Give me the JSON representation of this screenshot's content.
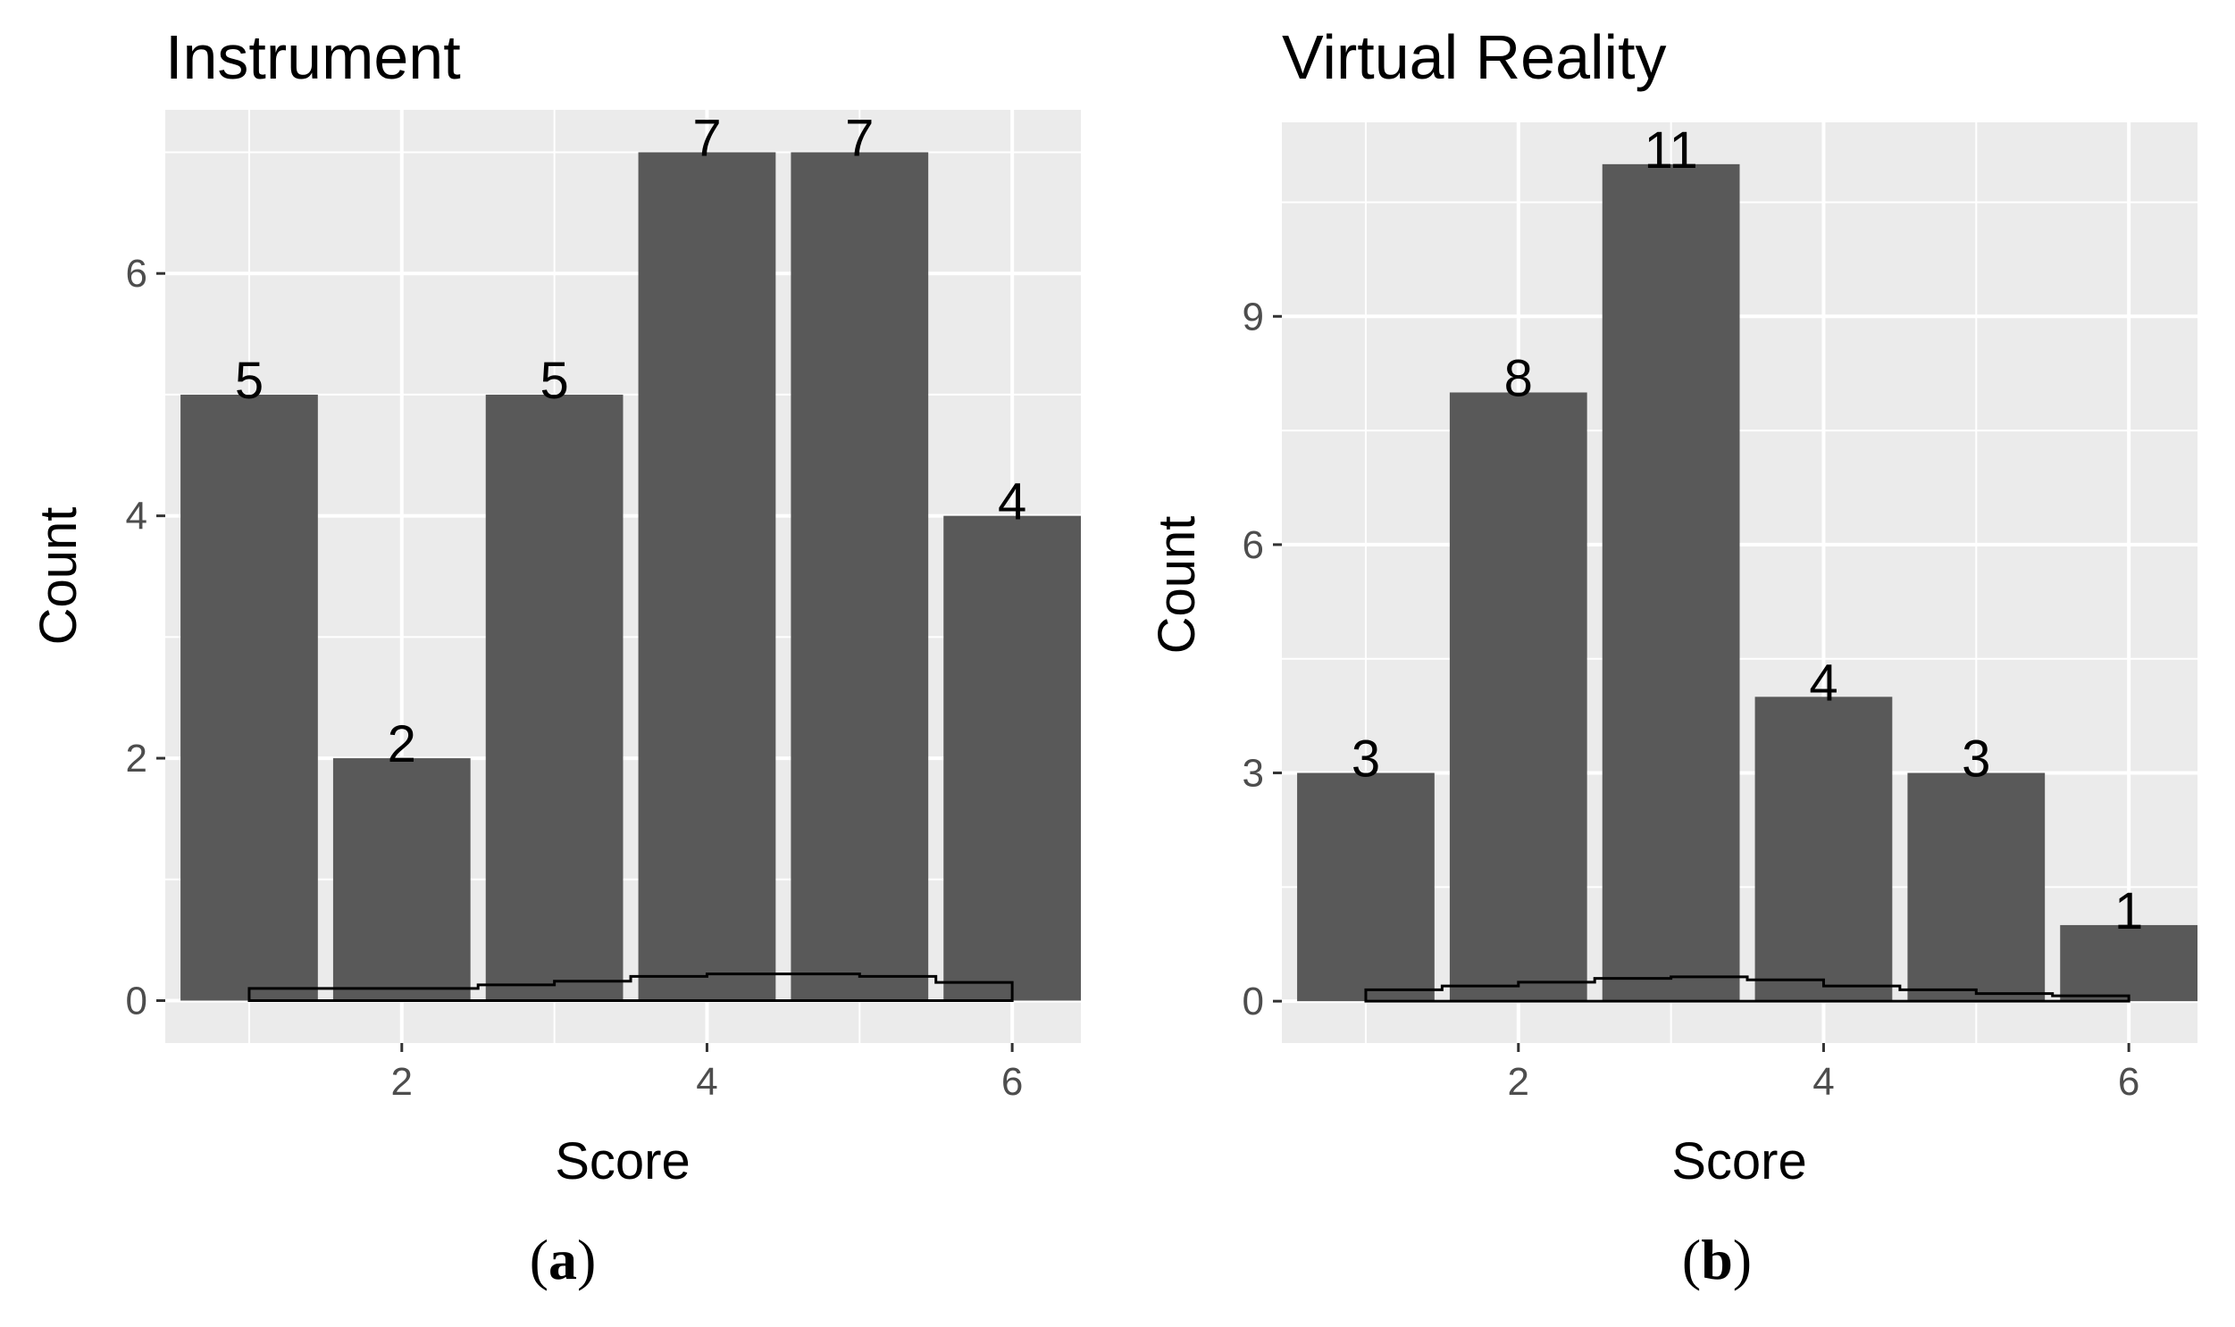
{
  "chart_data": [
    {
      "type": "bar",
      "title": "Instrument",
      "xlabel": "Score",
      "ylabel": "Count",
      "categories": [
        1,
        2,
        3,
        4,
        5,
        6
      ],
      "values": [
        5,
        2,
        5,
        7,
        7,
        4
      ],
      "data_labels": [
        "5",
        "2",
        "5",
        "7",
        "7",
        "4"
      ],
      "xlim": [
        0.45,
        6.45
      ],
      "ylim": [
        -0.35,
        7.35
      ],
      "x_ticks": [
        2,
        4,
        6
      ],
      "y_ticks": [
        0,
        2,
        4,
        6
      ],
      "density_outline": {
        "x": [
          1,
          1.5,
          2,
          2.5,
          3,
          3.5,
          4,
          4.5,
          5,
          5.5,
          6
        ],
        "y": [
          0.1,
          0.1,
          0.1,
          0.13,
          0.16,
          0.2,
          0.22,
          0.22,
          0.2,
          0.15,
          0.12
        ]
      },
      "grid": true,
      "legend": "none",
      "caption": "a"
    },
    {
      "type": "bar",
      "title": "Virtual Reality",
      "xlabel": "Score",
      "ylabel": "Count",
      "categories": [
        1,
        2,
        3,
        4,
        5,
        6
      ],
      "values": [
        3,
        8,
        11,
        4,
        3,
        1
      ],
      "data_labels": [
        "3",
        "8",
        "11",
        "4",
        "3",
        "1"
      ],
      "xlim": [
        0.45,
        6.45
      ],
      "ylim": [
        -0.55,
        11.55
      ],
      "x_ticks": [
        2,
        4,
        6
      ],
      "y_ticks": [
        0,
        3,
        6,
        9
      ],
      "density_outline": {
        "x": [
          1,
          1.5,
          2,
          2.5,
          3,
          3.5,
          4,
          4.5,
          5,
          5.5,
          6
        ],
        "y": [
          0.15,
          0.2,
          0.25,
          0.3,
          0.32,
          0.28,
          0.2,
          0.15,
          0.1,
          0.07,
          0.04
        ]
      },
      "grid": true,
      "legend": "none",
      "caption": "b"
    }
  ],
  "colors": {
    "panel_background": "#ebebeb",
    "gridline": "#ffffff",
    "bar_fill": "#595959",
    "tick_label": "#4d4d4d",
    "density_line": "#000000"
  }
}
